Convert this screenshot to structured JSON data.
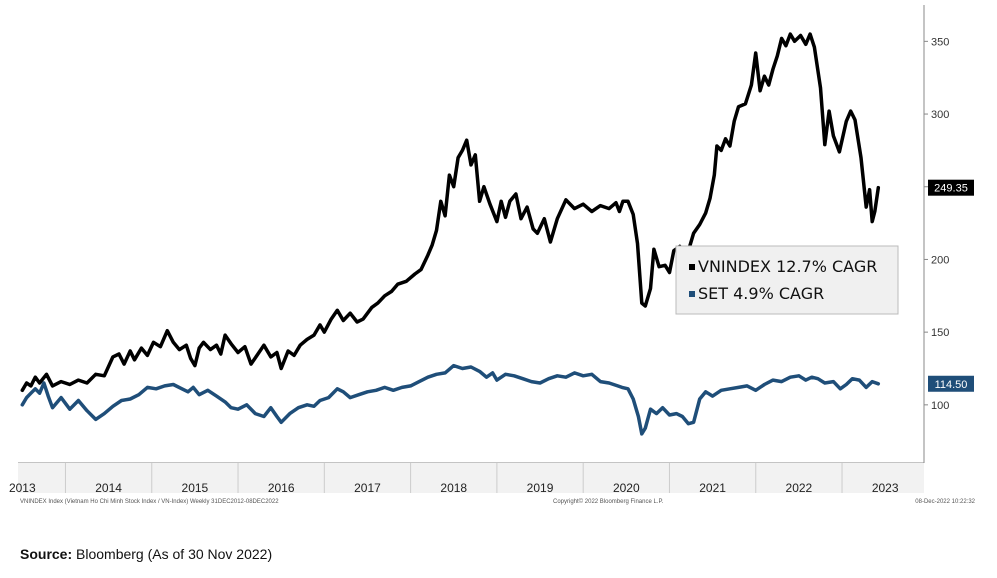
{
  "chart_data": {
    "type": "line",
    "title": "",
    "xlabel": "",
    "ylabel": "",
    "x_range": [
      2012.95,
      2023.45
    ],
    "ylim": [
      60,
      375
    ],
    "y_ticks": [
      100,
      150,
      200,
      250,
      300,
      350
    ],
    "year_labels": [
      "2013",
      "2014",
      "2015",
      "2016",
      "2017",
      "2018",
      "2019",
      "2020",
      "2021",
      "2022",
      "2023"
    ],
    "grid": false,
    "legend_position": "center-right",
    "series": [
      {
        "name": "VNINDEX 12.7% CAGR",
        "color": "#000000",
        "last_value_label": "249.35",
        "points": [
          [
            2013.0,
            110
          ],
          [
            2013.05,
            115
          ],
          [
            2013.1,
            113
          ],
          [
            2013.15,
            119
          ],
          [
            2013.2,
            115
          ],
          [
            2013.28,
            121
          ],
          [
            2013.35,
            113
          ],
          [
            2013.45,
            116
          ],
          [
            2013.55,
            114
          ],
          [
            2013.65,
            117
          ],
          [
            2013.75,
            115
          ],
          [
            2013.85,
            121
          ],
          [
            2013.95,
            120
          ],
          [
            2014.05,
            133
          ],
          [
            2014.12,
            135
          ],
          [
            2014.18,
            128
          ],
          [
            2014.25,
            137
          ],
          [
            2014.3,
            131
          ],
          [
            2014.38,
            139
          ],
          [
            2014.45,
            134
          ],
          [
            2014.52,
            143
          ],
          [
            2014.6,
            140
          ],
          [
            2014.68,
            151
          ],
          [
            2014.75,
            143
          ],
          [
            2014.82,
            138
          ],
          [
            2014.9,
            141
          ],
          [
            2014.95,
            132
          ],
          [
            2015.0,
            127
          ],
          [
            2015.05,
            139
          ],
          [
            2015.1,
            143
          ],
          [
            2015.18,
            138
          ],
          [
            2015.25,
            141
          ],
          [
            2015.3,
            135
          ],
          [
            2015.35,
            148
          ],
          [
            2015.42,
            142
          ],
          [
            2015.5,
            136
          ],
          [
            2015.58,
            140
          ],
          [
            2015.65,
            128
          ],
          [
            2015.72,
            134
          ],
          [
            2015.8,
            141
          ],
          [
            2015.88,
            133
          ],
          [
            2015.95,
            136
          ],
          [
            2016.0,
            125
          ],
          [
            2016.08,
            137
          ],
          [
            2016.15,
            134
          ],
          [
            2016.22,
            141
          ],
          [
            2016.3,
            145
          ],
          [
            2016.38,
            148
          ],
          [
            2016.45,
            155
          ],
          [
            2016.5,
            150
          ],
          [
            2016.58,
            159
          ],
          [
            2016.65,
            165
          ],
          [
            2016.72,
            158
          ],
          [
            2016.8,
            163
          ],
          [
            2016.88,
            157
          ],
          [
            2016.95,
            159
          ],
          [
            2017.05,
            167
          ],
          [
            2017.12,
            170
          ],
          [
            2017.2,
            175
          ],
          [
            2017.28,
            178
          ],
          [
            2017.35,
            183
          ],
          [
            2017.45,
            185
          ],
          [
            2017.55,
            190
          ],
          [
            2017.62,
            193
          ],
          [
            2017.7,
            203
          ],
          [
            2017.75,
            210
          ],
          [
            2017.8,
            220
          ],
          [
            2017.85,
            240
          ],
          [
            2017.9,
            230
          ],
          [
            2017.95,
            258
          ],
          [
            2018.0,
            250
          ],
          [
            2018.05,
            270
          ],
          [
            2018.1,
            275
          ],
          [
            2018.15,
            282
          ],
          [
            2018.2,
            265
          ],
          [
            2018.25,
            272
          ],
          [
            2018.3,
            240
          ],
          [
            2018.35,
            250
          ],
          [
            2018.42,
            238
          ],
          [
            2018.5,
            226
          ],
          [
            2018.55,
            240
          ],
          [
            2018.6,
            229
          ],
          [
            2018.65,
            240
          ],
          [
            2018.72,
            245
          ],
          [
            2018.78,
            228
          ],
          [
            2018.85,
            236
          ],
          [
            2018.92,
            221
          ],
          [
            2018.97,
            218
          ],
          [
            2019.05,
            228
          ],
          [
            2019.12,
            212
          ],
          [
            2019.2,
            228
          ],
          [
            2019.3,
            241
          ],
          [
            2019.4,
            235
          ],
          [
            2019.5,
            238
          ],
          [
            2019.6,
            233
          ],
          [
            2019.7,
            237
          ],
          [
            2019.8,
            235
          ],
          [
            2019.88,
            239
          ],
          [
            2019.92,
            233
          ],
          [
            2019.96,
            240
          ],
          [
            2020.02,
            240
          ],
          [
            2020.08,
            231
          ],
          [
            2020.13,
            211
          ],
          [
            2020.18,
            170
          ],
          [
            2020.22,
            168
          ],
          [
            2020.28,
            180
          ],
          [
            2020.32,
            207
          ],
          [
            2020.38,
            195
          ],
          [
            2020.45,
            196
          ],
          [
            2020.5,
            191
          ],
          [
            2020.55,
            206
          ],
          [
            2020.62,
            209
          ],
          [
            2020.7,
            202
          ],
          [
            2020.78,
            218
          ],
          [
            2020.85,
            224
          ],
          [
            2020.92,
            232
          ],
          [
            2020.97,
            242
          ],
          [
            2021.02,
            258
          ],
          [
            2021.05,
            278
          ],
          [
            2021.1,
            275
          ],
          [
            2021.15,
            283
          ],
          [
            2021.2,
            278
          ],
          [
            2021.25,
            295
          ],
          [
            2021.3,
            305
          ],
          [
            2021.38,
            307
          ],
          [
            2021.45,
            320
          ],
          [
            2021.5,
            342
          ],
          [
            2021.55,
            316
          ],
          [
            2021.6,
            326
          ],
          [
            2021.65,
            320
          ],
          [
            2021.7,
            331
          ],
          [
            2021.75,
            340
          ],
          [
            2021.8,
            352
          ],
          [
            2021.85,
            347
          ],
          [
            2021.9,
            355
          ],
          [
            2021.95,
            350
          ],
          [
            2022.02,
            354
          ],
          [
            2022.08,
            348
          ],
          [
            2022.13,
            355
          ],
          [
            2022.18,
            346
          ],
          [
            2022.25,
            318
          ],
          [
            2022.3,
            279
          ],
          [
            2022.35,
            302
          ],
          [
            2022.4,
            285
          ],
          [
            2022.47,
            274
          ],
          [
            2022.55,
            295
          ],
          [
            2022.6,
            302
          ],
          [
            2022.65,
            296
          ],
          [
            2022.72,
            270
          ],
          [
            2022.78,
            236
          ],
          [
            2022.82,
            248
          ],
          [
            2022.85,
            226
          ],
          [
            2022.88,
            233
          ],
          [
            2022.92,
            249.35
          ]
        ]
      },
      {
        "name": "SET 4.9% CAGR",
        "color": "#1f4e79",
        "last_value_label": "114.50",
        "points": [
          [
            2013.0,
            100
          ],
          [
            2013.05,
            105
          ],
          [
            2013.1,
            108
          ],
          [
            2013.15,
            111
          ],
          [
            2013.2,
            108
          ],
          [
            2013.25,
            115
          ],
          [
            2013.3,
            106
          ],
          [
            2013.35,
            98
          ],
          [
            2013.45,
            105
          ],
          [
            2013.55,
            97
          ],
          [
            2013.65,
            103
          ],
          [
            2013.75,
            96
          ],
          [
            2013.85,
            90
          ],
          [
            2013.95,
            94
          ],
          [
            2014.05,
            99
          ],
          [
            2014.15,
            103
          ],
          [
            2014.25,
            104
          ],
          [
            2014.35,
            107
          ],
          [
            2014.45,
            112
          ],
          [
            2014.55,
            111
          ],
          [
            2014.65,
            113
          ],
          [
            2014.75,
            114
          ],
          [
            2014.85,
            111
          ],
          [
            2014.92,
            109
          ],
          [
            2014.98,
            112
          ],
          [
            2015.05,
            107
          ],
          [
            2015.15,
            110
          ],
          [
            2015.25,
            106
          ],
          [
            2015.35,
            102
          ],
          [
            2015.42,
            98
          ],
          [
            2015.5,
            97
          ],
          [
            2015.6,
            100
          ],
          [
            2015.7,
            94
          ],
          [
            2015.8,
            92
          ],
          [
            2015.88,
            98
          ],
          [
            2015.95,
            92
          ],
          [
            2016.0,
            88
          ],
          [
            2016.1,
            94
          ],
          [
            2016.2,
            98
          ],
          [
            2016.3,
            100
          ],
          [
            2016.38,
            99
          ],
          [
            2016.45,
            103
          ],
          [
            2016.55,
            105
          ],
          [
            2016.65,
            111
          ],
          [
            2016.72,
            109
          ],
          [
            2016.8,
            105
          ],
          [
            2016.9,
            107
          ],
          [
            2017.0,
            109
          ],
          [
            2017.1,
            110
          ],
          [
            2017.2,
            112
          ],
          [
            2017.3,
            110
          ],
          [
            2017.4,
            112
          ],
          [
            2017.5,
            113
          ],
          [
            2017.6,
            116
          ],
          [
            2017.7,
            119
          ],
          [
            2017.8,
            121
          ],
          [
            2017.9,
            122
          ],
          [
            2018.0,
            127
          ],
          [
            2018.1,
            125
          ],
          [
            2018.2,
            126
          ],
          [
            2018.3,
            123
          ],
          [
            2018.38,
            119
          ],
          [
            2018.45,
            122
          ],
          [
            2018.5,
            117
          ],
          [
            2018.6,
            121
          ],
          [
            2018.7,
            120
          ],
          [
            2018.8,
            118
          ],
          [
            2018.9,
            116
          ],
          [
            2019.0,
            115
          ],
          [
            2019.1,
            118
          ],
          [
            2019.2,
            120
          ],
          [
            2019.3,
            119
          ],
          [
            2019.4,
            122
          ],
          [
            2019.5,
            120
          ],
          [
            2019.6,
            121
          ],
          [
            2019.7,
            116
          ],
          [
            2019.8,
            115
          ],
          [
            2019.9,
            113
          ],
          [
            2019.95,
            112
          ],
          [
            2020.02,
            111
          ],
          [
            2020.08,
            104
          ],
          [
            2020.14,
            92
          ],
          [
            2020.18,
            80
          ],
          [
            2020.22,
            84
          ],
          [
            2020.28,
            97
          ],
          [
            2020.35,
            94
          ],
          [
            2020.42,
            98
          ],
          [
            2020.5,
            93
          ],
          [
            2020.58,
            94
          ],
          [
            2020.65,
            92
          ],
          [
            2020.72,
            87
          ],
          [
            2020.78,
            88
          ],
          [
            2020.85,
            104
          ],
          [
            2020.92,
            109
          ],
          [
            2021.0,
            106
          ],
          [
            2021.1,
            110
          ],
          [
            2021.2,
            111
          ],
          [
            2021.3,
            112
          ],
          [
            2021.4,
            113
          ],
          [
            2021.5,
            110
          ],
          [
            2021.6,
            114
          ],
          [
            2021.7,
            117
          ],
          [
            2021.8,
            116
          ],
          [
            2021.9,
            119
          ],
          [
            2022.0,
            120
          ],
          [
            2022.08,
            117
          ],
          [
            2022.15,
            119
          ],
          [
            2022.22,
            118
          ],
          [
            2022.3,
            115
          ],
          [
            2022.4,
            116
          ],
          [
            2022.48,
            111
          ],
          [
            2022.55,
            114
          ],
          [
            2022.62,
            118
          ],
          [
            2022.7,
            117
          ],
          [
            2022.78,
            112
          ],
          [
            2022.85,
            116
          ],
          [
            2022.92,
            114.5
          ]
        ]
      }
    ]
  },
  "footnotes": {
    "left": "VNINDEX Index (Vietnam Ho Chi Minh Stock Index / VN-Index)  Weekly 31DEC2012-08DEC2022",
    "center": "Copyright© 2022 Bloomberg Finance L.P.",
    "right": "08-Dec-2022 10:22:32"
  },
  "source": {
    "label": "Source:",
    "text": " Bloomberg (As of 30 Nov 2022)"
  }
}
